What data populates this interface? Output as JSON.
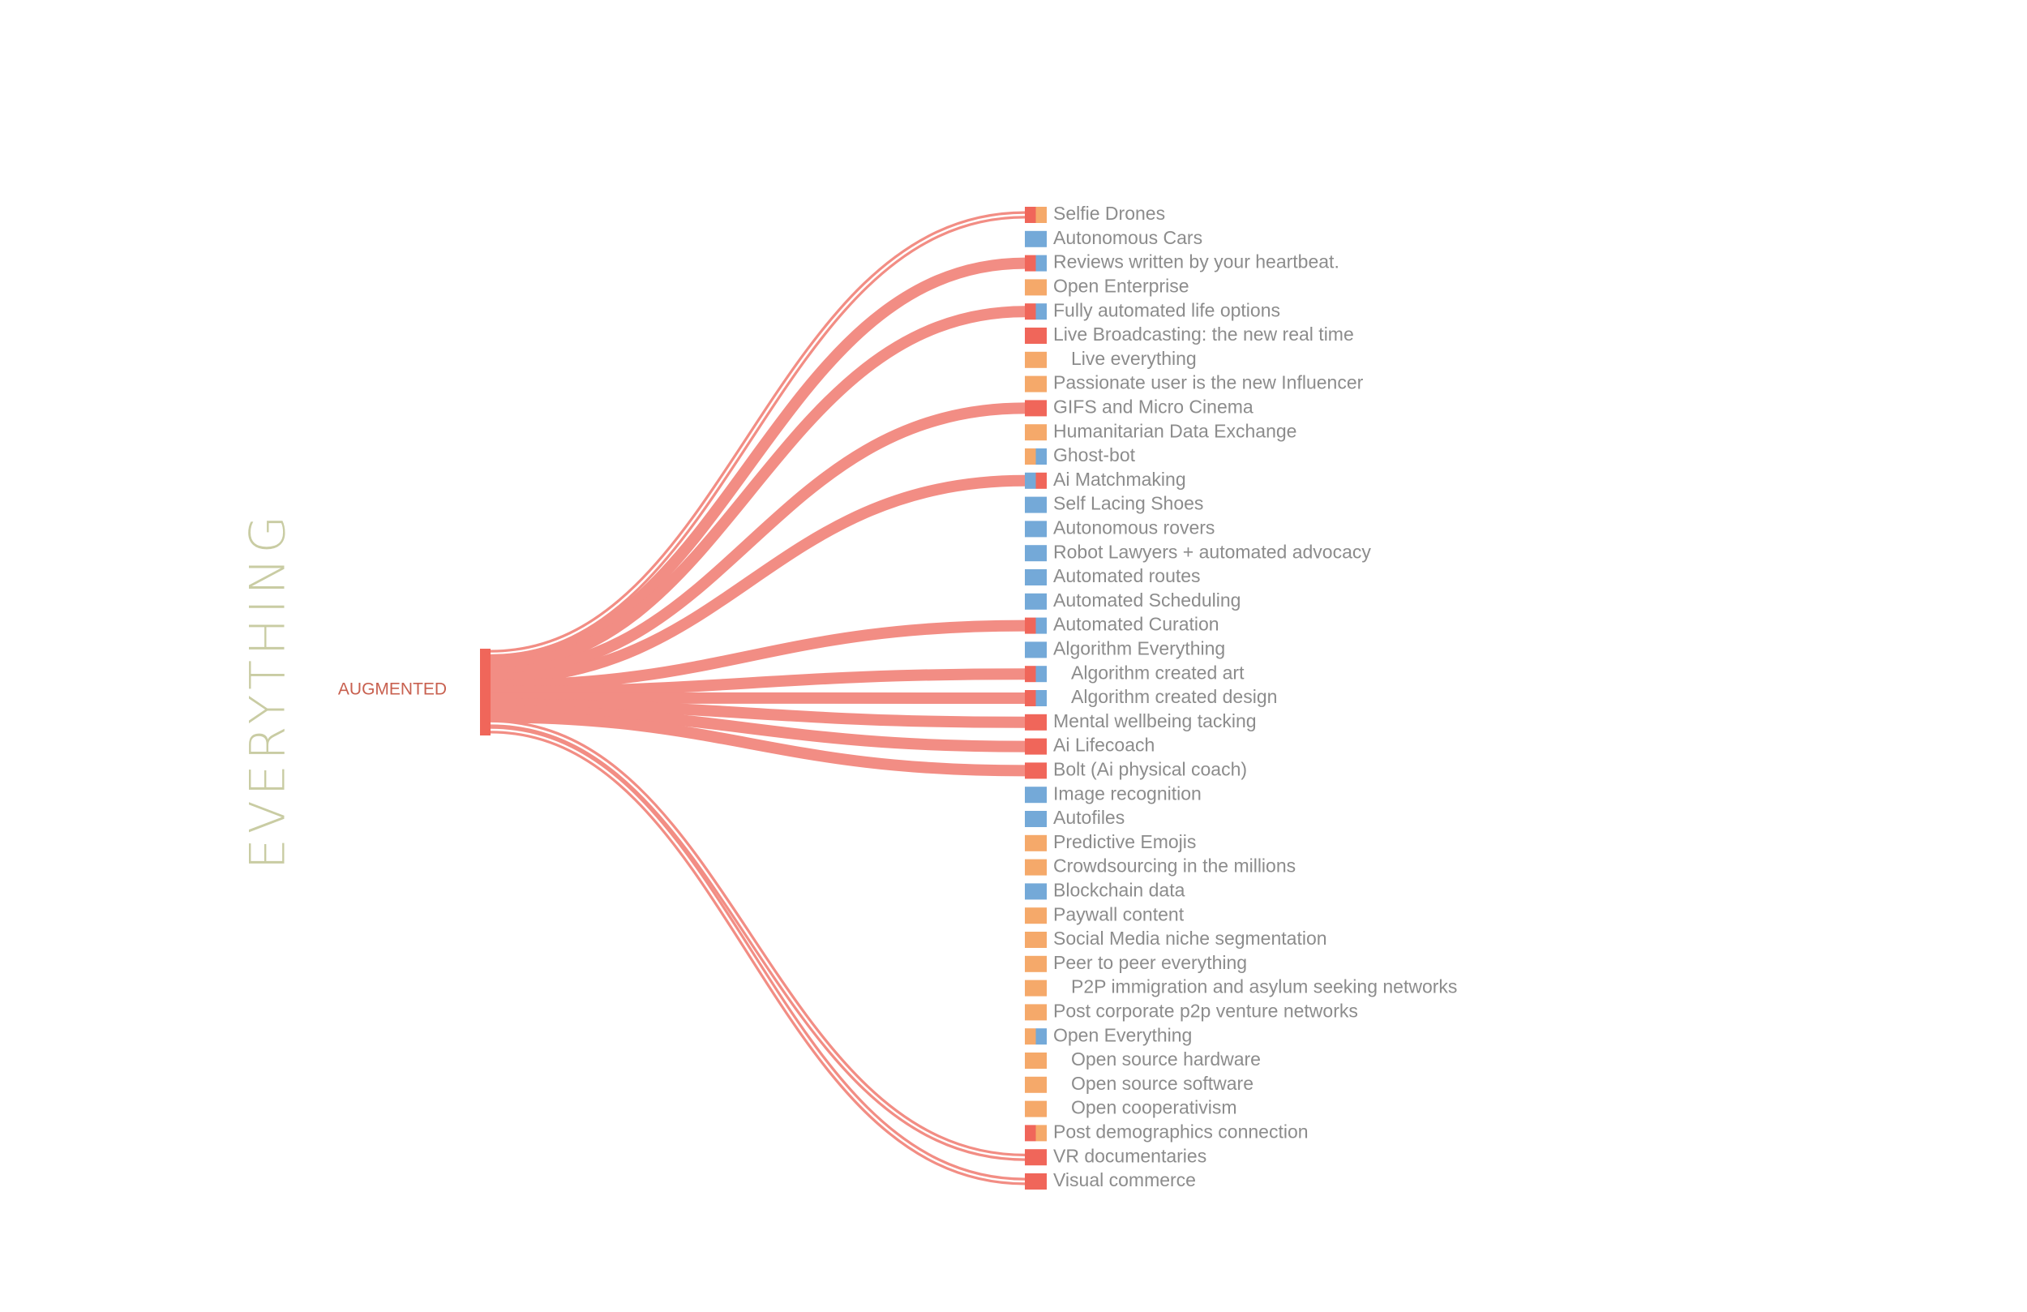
{
  "title": "EVERYTHING",
  "source": {
    "label": "AUGMENTED"
  },
  "items": [
    {
      "label": "Selfie Drones",
      "indent": false,
      "colors": [
        "#f0665a",
        "#f5a96a"
      ],
      "linked": true
    },
    {
      "label": "Autonomous Cars",
      "indent": false,
      "colors": [
        "#74a9d8"
      ],
      "linked": false
    },
    {
      "label": "Reviews written by your heartbeat.",
      "indent": false,
      "colors": [
        "#f0665a",
        "#74a9d8"
      ],
      "linked": true
    },
    {
      "label": "Open Enterprise",
      "indent": false,
      "colors": [
        "#f5a96a"
      ],
      "linked": false
    },
    {
      "label": "Fully automated life options",
      "indent": false,
      "colors": [
        "#f0665a",
        "#74a9d8"
      ],
      "linked": true
    },
    {
      "label": "Live Broadcasting: the new real time",
      "indent": false,
      "colors": [
        "#f0665a"
      ],
      "linked": false
    },
    {
      "label": "Live everything",
      "indent": true,
      "colors": [
        "#f5a96a"
      ],
      "linked": false
    },
    {
      "label": "Passionate user is the new Influencer",
      "indent": false,
      "colors": [
        "#f5a96a"
      ],
      "linked": false
    },
    {
      "label": "GIFS and Micro Cinema",
      "indent": false,
      "colors": [
        "#f0665a"
      ],
      "linked": true
    },
    {
      "label": "Humanitarian Data Exchange",
      "indent": false,
      "colors": [
        "#f5a96a"
      ],
      "linked": false
    },
    {
      "label": "Ghost-bot",
      "indent": false,
      "colors": [
        "#f5a96a",
        "#74a9d8"
      ],
      "linked": false
    },
    {
      "label": "Ai Matchmaking",
      "indent": false,
      "colors": [
        "#74a9d8",
        "#f0665a"
      ],
      "linked": true
    },
    {
      "label": "Self Lacing Shoes",
      "indent": false,
      "colors": [
        "#74a9d8"
      ],
      "linked": false
    },
    {
      "label": "Autonomous rovers",
      "indent": false,
      "colors": [
        "#74a9d8"
      ],
      "linked": false
    },
    {
      "label": "Robot Lawyers + automated advocacy",
      "indent": false,
      "colors": [
        "#74a9d8"
      ],
      "linked": false
    },
    {
      "label": "Automated routes",
      "indent": false,
      "colors": [
        "#74a9d8"
      ],
      "linked": false
    },
    {
      "label": "Automated Scheduling",
      "indent": false,
      "colors": [
        "#74a9d8"
      ],
      "linked": false
    },
    {
      "label": "Automated Curation",
      "indent": false,
      "colors": [
        "#f0665a",
        "#74a9d8"
      ],
      "linked": true
    },
    {
      "label": "Algorithm Everything",
      "indent": false,
      "colors": [
        "#74a9d8"
      ],
      "linked": false
    },
    {
      "label": "Algorithm created art",
      "indent": true,
      "colors": [
        "#f0665a",
        "#74a9d8"
      ],
      "linked": true
    },
    {
      "label": "Algorithm created design",
      "indent": true,
      "colors": [
        "#f0665a",
        "#74a9d8"
      ],
      "linked": true
    },
    {
      "label": "Mental wellbeing tacking",
      "indent": false,
      "colors": [
        "#f0665a"
      ],
      "linked": true
    },
    {
      "label": "Ai Lifecoach",
      "indent": false,
      "colors": [
        "#f0665a"
      ],
      "linked": true
    },
    {
      "label": "Bolt (Ai physical coach)",
      "indent": false,
      "colors": [
        "#f0665a"
      ],
      "linked": true
    },
    {
      "label": "Image recognition",
      "indent": false,
      "colors": [
        "#74a9d8"
      ],
      "linked": false
    },
    {
      "label": "Autofiles",
      "indent": false,
      "colors": [
        "#74a9d8"
      ],
      "linked": false
    },
    {
      "label": "Predictive Emojis",
      "indent": false,
      "colors": [
        "#f5a96a"
      ],
      "linked": false
    },
    {
      "label": "Crowdsourcing in the millions",
      "indent": false,
      "colors": [
        "#f5a96a"
      ],
      "linked": false
    },
    {
      "label": "Blockchain data",
      "indent": false,
      "colors": [
        "#74a9d8"
      ],
      "linked": false
    },
    {
      "label": "Paywall content",
      "indent": false,
      "colors": [
        "#f5a96a"
      ],
      "linked": false
    },
    {
      "label": "Social Media niche segmentation",
      "indent": false,
      "colors": [
        "#f5a96a"
      ],
      "linked": false
    },
    {
      "label": "Peer to peer everything",
      "indent": false,
      "colors": [
        "#f5a96a"
      ],
      "linked": false
    },
    {
      "label": "P2P immigration and asylum seeking networks",
      "indent": true,
      "colors": [
        "#f5a96a"
      ],
      "linked": false
    },
    {
      "label": "Post corporate p2p venture networks",
      "indent": false,
      "colors": [
        "#f5a96a"
      ],
      "linked": false
    },
    {
      "label": "Open Everything",
      "indent": false,
      "colors": [
        "#f5a96a",
        "#74a9d8"
      ],
      "linked": false
    },
    {
      "label": "Open source hardware",
      "indent": true,
      "colors": [
        "#f5a96a"
      ],
      "linked": false
    },
    {
      "label": "Open source software",
      "indent": true,
      "colors": [
        "#f5a96a"
      ],
      "linked": false
    },
    {
      "label": "Open cooperativism",
      "indent": true,
      "colors": [
        "#f5a96a"
      ],
      "linked": false
    },
    {
      "label": "Post demographics connection",
      "indent": false,
      "colors": [
        "#f0665a",
        "#f5a96a"
      ],
      "linked": false
    },
    {
      "label": "VR documentaries",
      "indent": false,
      "colors": [
        "#f0665a"
      ],
      "linked": true
    },
    {
      "label": "Visual commerce",
      "indent": false,
      "colors": [
        "#f0665a"
      ],
      "linked": true
    }
  ]
}
